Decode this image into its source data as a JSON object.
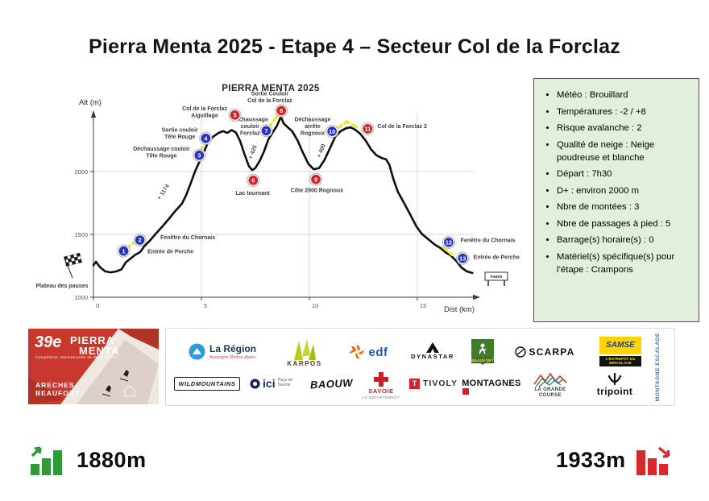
{
  "page": {
    "title": "Pierra Menta 2025 - Etape 4 – Secteur Col de la Forclaz"
  },
  "chart_data": {
    "type": "line",
    "title": "PIERRA MENTA 2025",
    "xlabel": "Dist (km)",
    "ylabel": "Alt (m)",
    "xlim": [
      0,
      18
    ],
    "ylim": [
      1000,
      2550
    ],
    "xticks": [
      0,
      5,
      10,
      15
    ],
    "yticks": [
      1000,
      1500,
      2000
    ],
    "grid": true,
    "colors": {
      "marker_blue": "#2433c0",
      "marker_red": "#d42127",
      "foot_yellow": "#e4ec39",
      "line": "#0f0f0f"
    },
    "profile": [
      [
        0,
        1255
      ],
      [
        0.12,
        1282
      ],
      [
        0.3,
        1240
      ],
      [
        0.55,
        1205
      ],
      [
        0.8,
        1198
      ],
      [
        1.05,
        1205
      ],
      [
        1.3,
        1222
      ],
      [
        1.5,
        1278
      ],
      [
        1.7,
        1305
      ],
      [
        1.95,
        1340
      ],
      [
        2.1,
        1352
      ],
      [
        2.2,
        1368
      ],
      [
        2.35,
        1405
      ],
      [
        2.6,
        1448
      ],
      [
        2.9,
        1508
      ],
      [
        3.2,
        1565
      ],
      [
        3.5,
        1625
      ],
      [
        3.8,
        1688
      ],
      [
        4.1,
        1745
      ],
      [
        4.3,
        1815
      ],
      [
        4.5,
        1905
      ],
      [
        4.7,
        2000
      ],
      [
        4.9,
        2075
      ],
      [
        5.1,
        2150
      ],
      [
        5.3,
        2230
      ],
      [
        5.55,
        2278
      ],
      [
        5.8,
        2308
      ],
      [
        6.0,
        2322
      ],
      [
        6.2,
        2308
      ],
      [
        6.4,
        2330
      ],
      [
        6.6,
        2310
      ],
      [
        6.8,
        2240
      ],
      [
        7.0,
        2135
      ],
      [
        7.2,
        2042
      ],
      [
        7.35,
        2012
      ],
      [
        7.5,
        2028
      ],
      [
        7.7,
        2085
      ],
      [
        7.9,
        2160
      ],
      [
        8.1,
        2255
      ],
      [
        8.3,
        2310
      ],
      [
        8.5,
        2365
      ],
      [
        8.68,
        2438
      ],
      [
        8.8,
        2385
      ],
      [
        9.0,
        2352
      ],
      [
        9.2,
        2322
      ],
      [
        9.45,
        2248
      ],
      [
        9.7,
        2150
      ],
      [
        9.95,
        2062
      ],
      [
        10.2,
        2018
      ],
      [
        10.45,
        2028
      ],
      [
        10.7,
        2092
      ],
      [
        10.95,
        2185
      ],
      [
        11.2,
        2278
      ],
      [
        11.45,
        2322
      ],
      [
        11.7,
        2345
      ],
      [
        11.9,
        2352
      ],
      [
        12.1,
        2335
      ],
      [
        12.35,
        2302
      ],
      [
        12.6,
        2248
      ],
      [
        12.85,
        2178
      ],
      [
        13.1,
        2130
      ],
      [
        13.35,
        2108
      ],
      [
        13.55,
        2098
      ],
      [
        13.7,
        2055
      ],
      [
        13.9,
        1935
      ],
      [
        14.1,
        1838
      ],
      [
        14.35,
        1760
      ],
      [
        14.65,
        1665
      ],
      [
        14.95,
        1565
      ],
      [
        15.2,
        1505
      ],
      [
        15.5,
        1462
      ],
      [
        15.8,
        1420
      ],
      [
        16.1,
        1388
      ],
      [
        16.3,
        1358
      ],
      [
        16.55,
        1332
      ],
      [
        16.8,
        1290
      ],
      [
        17.05,
        1235
      ],
      [
        17.3,
        1205
      ],
      [
        17.55,
        1193
      ]
    ],
    "checkpoints": [
      {
        "n": 1,
        "km": 1.4,
        "alt": 1368,
        "color": "blue"
      },
      {
        "n": 2,
        "km": 2.15,
        "alt": 1455,
        "color": "blue"
      },
      {
        "n": 3,
        "km": 4.9,
        "alt": 2130,
        "color": "blue"
      },
      {
        "n": 4,
        "km": 5.2,
        "alt": 2265,
        "color": "blue"
      },
      {
        "n": 5,
        "km": 6.55,
        "alt": 2450,
        "color": "red"
      },
      {
        "n": 6,
        "km": 7.4,
        "alt": 1930,
        "color": "red"
      },
      {
        "n": 7,
        "km": 8.0,
        "alt": 2325,
        "color": "blue"
      },
      {
        "n": 8,
        "km": 8.7,
        "alt": 2485,
        "color": "red"
      },
      {
        "n": 9,
        "km": 10.3,
        "alt": 1938,
        "color": "red"
      },
      {
        "n": 10,
        "km": 11.05,
        "alt": 2320,
        "color": "blue"
      },
      {
        "n": 11,
        "km": 12.7,
        "alt": 2340,
        "color": "red"
      },
      {
        "n": 12,
        "km": 16.45,
        "alt": 1437,
        "color": "blue"
      },
      {
        "n": 13,
        "km": 17.1,
        "alt": 1310,
        "color": "blue"
      }
    ],
    "labels": [
      {
        "lines": [
          "Fenêtre du Chornais"
        ],
        "km": 3.1,
        "alt": 1460,
        "anchor": "start"
      },
      {
        "lines": [
          "Entrée de Perche"
        ],
        "km": 2.5,
        "alt": 1350,
        "anchor": "start"
      },
      {
        "lines": [
          "Déchaussage couloir",
          "Tête Rouge"
        ],
        "km": 3.15,
        "alt": 2140,
        "anchor": "middle"
      },
      {
        "lines": [
          "Sortie couloir",
          "Tête Rouge"
        ],
        "km": 4.0,
        "alt": 2290,
        "anchor": "middle"
      },
      {
        "lines": [
          "Col de la Forclaz",
          "Aiguillage"
        ],
        "km": 5.15,
        "alt": 2460,
        "anchor": "middle"
      },
      {
        "lines": [
          "Lac tournant"
        ],
        "km": 7.37,
        "alt": 1815,
        "anchor": "middle"
      },
      {
        "lines": [
          "Déchaussage",
          "couloir",
          "Forclaz"
        ],
        "km": 7.25,
        "alt": 2345,
        "anchor": "middle"
      },
      {
        "lines": [
          "Sortie Couloir",
          "Col de la Forclaz"
        ],
        "km": 8.17,
        "alt": 2580,
        "anchor": "middle"
      },
      {
        "lines": [
          "Côte 2000 Rognoux"
        ],
        "km": 10.35,
        "alt": 1838,
        "anchor": "middle"
      },
      {
        "lines": [
          "Déchaussage",
          "arrête",
          "Rognoux"
        ],
        "km": 10.15,
        "alt": 2345,
        "anchor": "middle"
      },
      {
        "lines": [
          "Col de la Forclaz 2"
        ],
        "km": 13.15,
        "alt": 2345,
        "anchor": "start"
      },
      {
        "lines": [
          "Fenêtre du Chornais"
        ],
        "km": 17.0,
        "alt": 1440,
        "anchor": "start"
      },
      {
        "lines": [
          "Entrée de Perche"
        ],
        "km": 17.6,
        "alt": 1305,
        "anchor": "start"
      }
    ],
    "climb_annotations": [
      {
        "text": "+ 1174",
        "km": 3.3,
        "alt": 1830,
        "angle": -57
      },
      {
        "text": "+ 425",
        "km": 7.45,
        "alt": 2150,
        "angle": -68
      },
      {
        "text": "+ 400",
        "km": 10.62,
        "alt": 2160,
        "angle": -68
      }
    ],
    "foot_sections": [
      [
        [
          1.5,
          1385
        ],
        [
          1.95,
          1445
        ]
      ],
      [
        [
          4.95,
          2160
        ],
        [
          5.15,
          2235
        ]
      ],
      [
        [
          8.1,
          2350
        ],
        [
          8.55,
          2450
        ]
      ],
      [
        [
          11.3,
          2345
        ],
        [
          11.75,
          2398
        ],
        [
          12.2,
          2352
        ]
      ],
      [
        [
          16.2,
          1398
        ],
        [
          16.6,
          1338
        ]
      ]
    ],
    "start_label": "Plateau des pauses",
    "finish_label": "FINISH"
  },
  "info_box": {
    "bg": "#e2efda",
    "items": [
      "Météo : Brouillard",
      "Températures : -2 / +8",
      "Risque avalanche : 2",
      "Qualité de neige : Neige poudreuse et blanche",
      "Départ : 7h30",
      "D+ : environ 2000 m",
      "Nbre de montées : 3",
      "Nbre de passages à pied : 5",
      "Barrage(s) horaire(s) : 0",
      "Matériel(s) spécifique(s) pour l’étape : Crampons"
    ]
  },
  "poster": {
    "edition": "39e",
    "title_line1": "PIERRA",
    "title_line2": "MENTA",
    "subtitle": "Compétition internationale de ski alpinisme",
    "location_line1": "ARECHES",
    "location_line2": "BEAUFORT"
  },
  "sponsors": {
    "row1": [
      {
        "name": "La Région",
        "sub": "Auvergne-Rhône-Alpes"
      },
      {
        "name": "KARPOS"
      },
      {
        "name": "edf"
      },
      {
        "name": "DYNASTAR"
      },
      {
        "name": "BEAUFORT"
      },
      {
        "name": "SCARPA"
      },
      {
        "name": "SAMSE",
        "sub": "L'ENTREPÔT DU BRICOLAGE"
      },
      {
        "name": "MONTAGNE ESCALADE"
      }
    ],
    "row2": [
      {
        "name": "WILDMOUNTAINS"
      },
      {
        "name": "ici",
        "sub": "Pays de Savoie"
      },
      {
        "name": "BAOUW"
      },
      {
        "name": "SAVOIE",
        "sub": "LE DÉPARTEMENT"
      },
      {
        "name": "TIVOLY"
      },
      {
        "name": "MONTAGNES"
      },
      {
        "name": "LA GRANDE COURSE"
      },
      {
        "name": "tripoint"
      }
    ]
  },
  "stats": {
    "ascent": "1880m",
    "descent": "1933m",
    "ascent_color": "#2f9b38",
    "descent_color": "#d7282a"
  }
}
